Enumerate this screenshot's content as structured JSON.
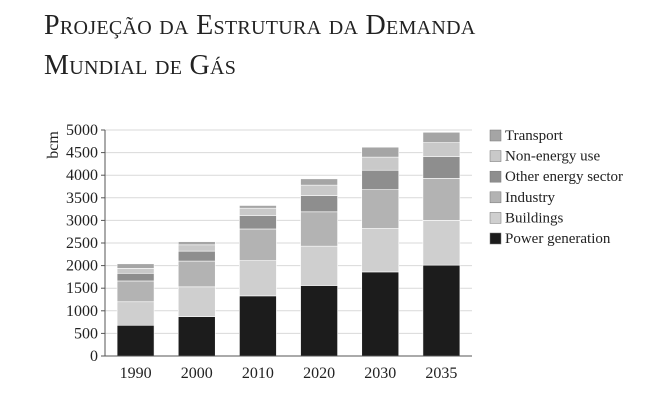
{
  "chart_data": {
    "type": "bar",
    "stacked": true,
    "title_lines": [
      "Projeção da Estrutura da Demanda",
      "Mundial de Gás"
    ],
    "xlabel": "",
    "ylabel": "bcm",
    "ylim": [
      0,
      5000
    ],
    "yticks": [
      0,
      500,
      1000,
      1500,
      2000,
      2500,
      3000,
      3500,
      4000,
      4500,
      5000
    ],
    "grid": true,
    "legend_position": "right",
    "categories": [
      "1990",
      "2000",
      "2010",
      "2020",
      "2030",
      "2035"
    ],
    "series": [
      {
        "name": "Power generation",
        "color": "#1c1c1c",
        "values": [
          680,
          870,
          1330,
          1560,
          1860,
          2010
        ]
      },
      {
        "name": "Buildings",
        "color": "#cfcfcf",
        "values": [
          520,
          660,
          780,
          870,
          960,
          990
        ]
      },
      {
        "name": "Industry",
        "color": "#b3b3b3",
        "values": [
          460,
          570,
          700,
          760,
          860,
          930
        ]
      },
      {
        "name": "Other energy sector",
        "color": "#8e8e8e",
        "values": [
          170,
          220,
          300,
          360,
          430,
          480
        ]
      },
      {
        "name": "Non-energy use",
        "color": "#c9c9c9",
        "values": [
          110,
          140,
          160,
          230,
          290,
          310
        ]
      },
      {
        "name": "Transport",
        "color": "#a5a5a5",
        "values": [
          100,
          70,
          60,
          140,
          220,
          230
        ]
      }
    ],
    "legend_order": [
      "Transport",
      "Non-energy use",
      "Other energy sector",
      "Industry",
      "Buildings",
      "Power generation"
    ]
  }
}
